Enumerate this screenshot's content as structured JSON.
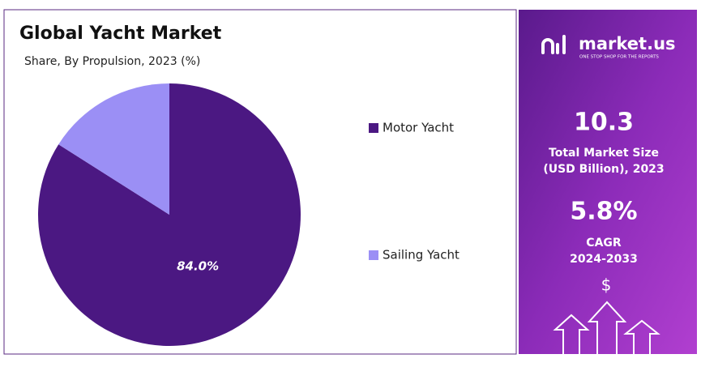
{
  "chart_data": {
    "type": "pie",
    "title": "Global Yacht Market",
    "subtitle": "Share, By Propulsion, 2023 (%)",
    "categories": [
      "Motor Yacht",
      "Sailing Yacht"
    ],
    "values": [
      84.0,
      16.0
    ],
    "value_labels": [
      "84.0%",
      null
    ],
    "colors": [
      "#4b1882",
      "#9b8ff5"
    ],
    "legend": "right"
  },
  "panel": {
    "brand": "market.us",
    "tagline": "ONE STOP SHOP FOR THE REPORTS",
    "stats": [
      {
        "value": "10.3",
        "label": "Total Market Size",
        "sublabel": "(USD Billion), 2023"
      },
      {
        "value": "5.8%",
        "label": "CAGR",
        "sublabel": "2024-2033"
      }
    ],
    "symbol": "$"
  }
}
